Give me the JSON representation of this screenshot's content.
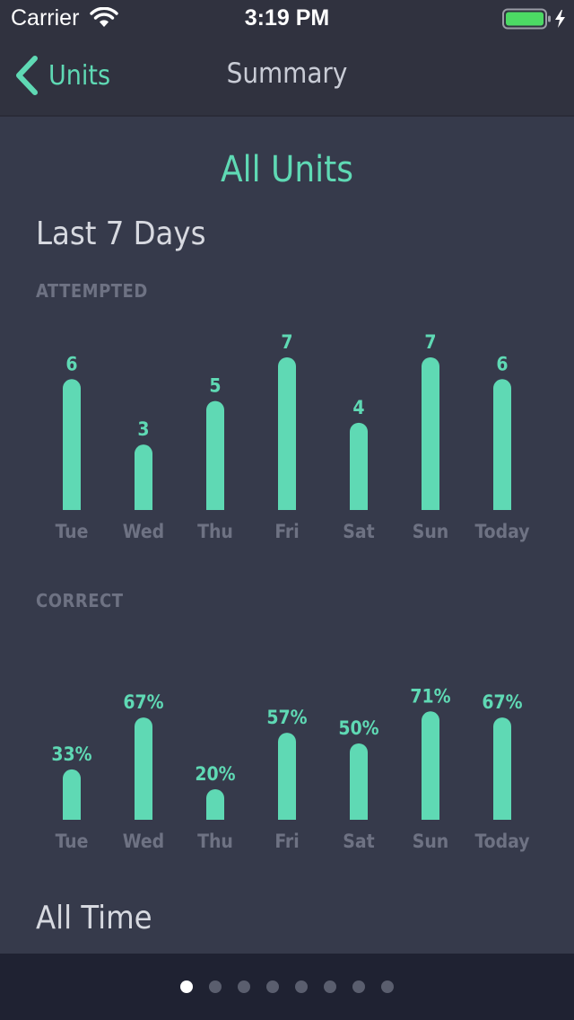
{
  "status_bar": {
    "carrier": "Carrier",
    "time": "3:19 PM",
    "wifi_icon": "wifi-icon",
    "battery_icon": "battery-charging-icon"
  },
  "nav": {
    "back_label": "Units",
    "back_icon": "chevron-left-icon",
    "title": "Summary"
  },
  "page_title": "All Units",
  "sections": {
    "last7": "Last 7 Days",
    "alltime": "All Time"
  },
  "colors": {
    "accent": "#5fd9b4",
    "background": "#363a4b",
    "topbar": "#30323f",
    "muted_label": "#6e7283"
  },
  "chart_data": [
    {
      "type": "bar",
      "title": "ATTEMPTED",
      "categories": [
        "Tue",
        "Wed",
        "Thu",
        "Fri",
        "Sat",
        "Sun",
        "Today"
      ],
      "values": [
        6,
        3,
        5,
        7,
        4,
        7,
        6
      ],
      "value_labels": [
        "6",
        "3",
        "5",
        "7",
        "4",
        "7",
        "6"
      ],
      "ylim": [
        0,
        7
      ]
    },
    {
      "type": "bar",
      "title": "CORRECT",
      "categories": [
        "Tue",
        "Wed",
        "Thu",
        "Fri",
        "Sat",
        "Sun",
        "Today"
      ],
      "values": [
        33,
        67,
        20,
        57,
        50,
        71,
        67
      ],
      "value_labels": [
        "33%",
        "67%",
        "20%",
        "57%",
        "50%",
        "71%",
        "67%"
      ],
      "ylim": [
        0,
        100
      ]
    }
  ],
  "pager": {
    "total_pages": 8,
    "current_page": 1
  }
}
